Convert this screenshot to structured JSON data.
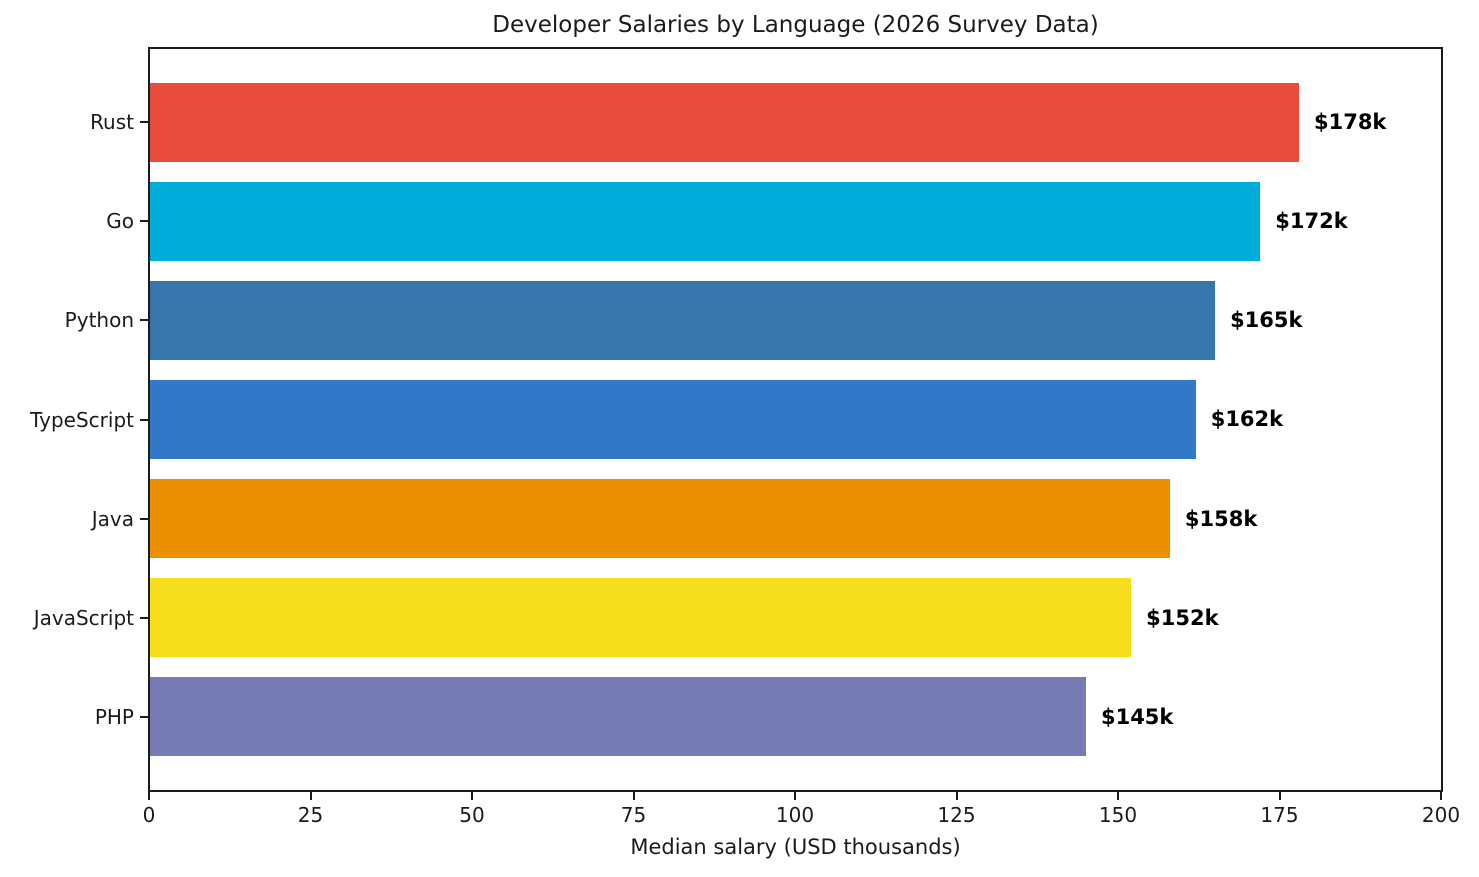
{
  "chart_data": {
    "type": "bar",
    "orientation": "horizontal",
    "title": "Developer Salaries by Language (2026 Survey Data)",
    "xlabel": "Median salary (USD thousands)",
    "categories": [
      "Rust",
      "Go",
      "Python",
      "TypeScript",
      "Java",
      "JavaScript",
      "PHP"
    ],
    "values": [
      178,
      172,
      165,
      162,
      158,
      152,
      145
    ],
    "value_labels": [
      "$178k",
      "$172k",
      "$165k",
      "$162k",
      "$158k",
      "$152k",
      "$145k"
    ],
    "colors": [
      "#e74c3c",
      "#00add8",
      "#3776ab",
      "#3178c6",
      "#ec8f00",
      "#f6de1c",
      "#777bb4"
    ],
    "xlim": [
      0,
      200
    ],
    "xticks": [
      0,
      25,
      50,
      75,
      100,
      125,
      150,
      175,
      200
    ],
    "grid": false,
    "legend": false,
    "frame_color": "#1b1b1b",
    "background_color": "#ffffff"
  }
}
